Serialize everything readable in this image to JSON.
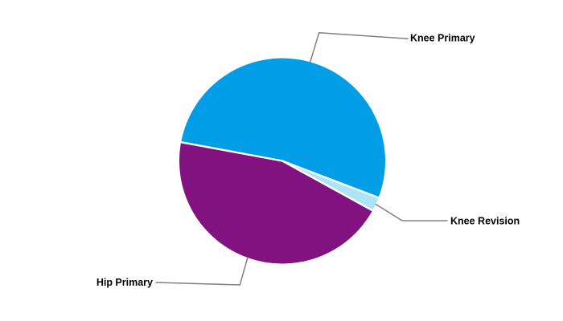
{
  "chart_data": {
    "type": "pie",
    "title": "",
    "categories": [
      "Knee Primary",
      "Knee Revision",
      "Hip Primary"
    ],
    "slices": [
      {
        "label": "Knee Primary",
        "value": 52.9,
        "color": "#009EE6"
      },
      {
        "label": "Knee Revision",
        "value": 2.2,
        "color": "#AEE4F9"
      },
      {
        "label": "Hip Primary",
        "value": 44.9,
        "color": "#821280"
      }
    ],
    "unit": "percent-of-whole (no numeric labels shown on chart)",
    "start_angle_deg": 169.5,
    "direction": "clockwise",
    "legend_position": "none (direct callout labels with leader lines)",
    "grid": false,
    "separator_color": "#FFFFFF",
    "leader_line_color": "#808080",
    "label_color": "#000000",
    "background_color": "#FFFFFF"
  }
}
